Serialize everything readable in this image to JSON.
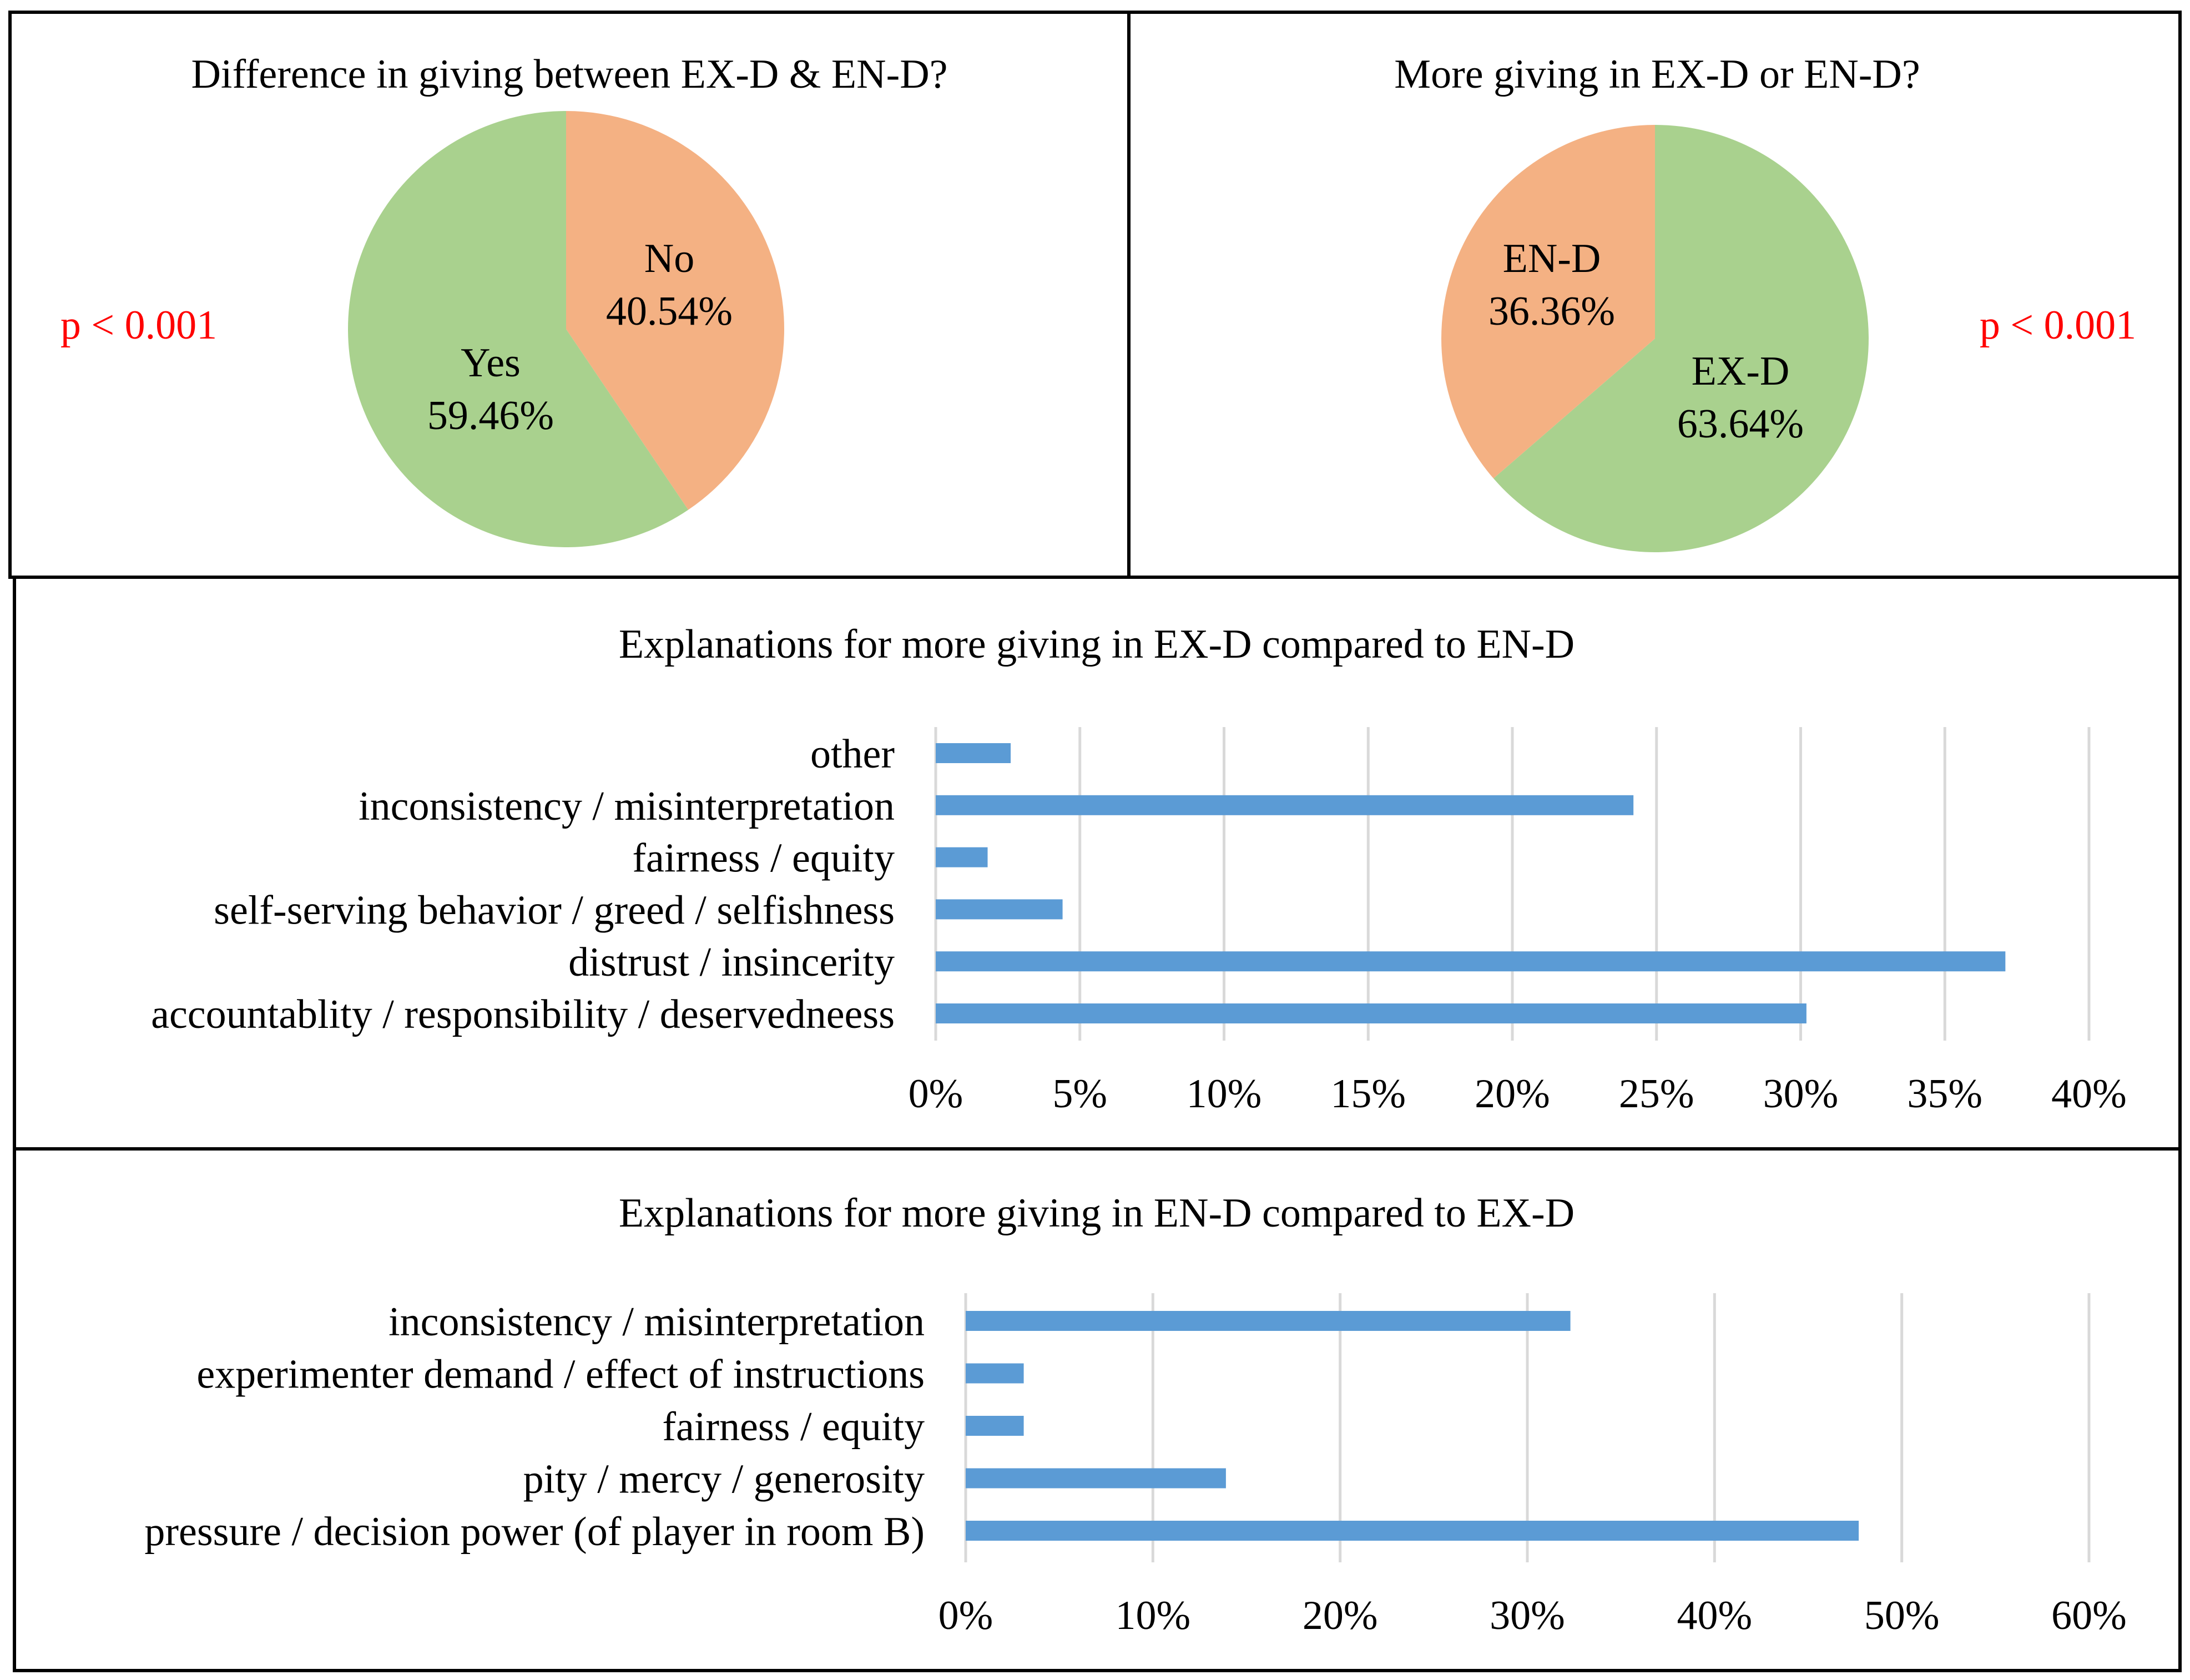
{
  "figure": {
    "colors": {
      "pie_green": "#A9D18E",
      "pie_orange": "#F4B183",
      "bar_blue": "#5B9BD5",
      "grid": "#D9D9D9",
      "pvalue_red": "#FF0000",
      "border": "#000000"
    }
  },
  "chart_data": [
    {
      "type": "pie",
      "title": "Difference in giving between EX-D & EN-D?",
      "annotation": "p < 0.001",
      "slices": [
        {
          "label": "No",
          "value": 40.54,
          "value_label": "40.54%",
          "color": "#F4B183"
        },
        {
          "label": "Yes",
          "value": 59.46,
          "value_label": "59.46%",
          "color": "#A9D18E"
        }
      ]
    },
    {
      "type": "pie",
      "title": "More giving in EX-D or EN-D?",
      "annotation": "p < 0.001",
      "slices": [
        {
          "label": "EX-D",
          "value": 63.64,
          "value_label": "63.64%",
          "color": "#A9D18E"
        },
        {
          "label": "EN-D",
          "value": 36.36,
          "value_label": "36.36%",
          "color": "#F4B183"
        }
      ]
    },
    {
      "type": "bar",
      "orientation": "horizontal",
      "title": "Explanations for more giving in EX-D compared to EN-D",
      "categories": [
        "other",
        "inconsistency / misinterpretation",
        "fairness / equity",
        "self-serving behavior / greed / selfishness",
        "distrust / insincerity",
        "accountablity / responsibility / deservedneess"
      ],
      "values": [
        2.6,
        24.2,
        1.8,
        4.4,
        37.1,
        30.2
      ],
      "xlim": [
        0,
        40
      ],
      "xticks": [
        "0%",
        "5%",
        "10%",
        "15%",
        "20%",
        "25%",
        "30%",
        "35%",
        "40%"
      ],
      "grid": true
    },
    {
      "type": "bar",
      "orientation": "horizontal",
      "title": "Explanations for more giving in EN-D compared to EX-D",
      "categories": [
        "inconsistency / misinterpretation",
        "experimenter demand / effect of instructions",
        "fairness / equity",
        "pity / mercy / generosity",
        "pressure / decision power (of player in room B)"
      ],
      "values": [
        32.3,
        3.1,
        3.1,
        13.9,
        47.7
      ],
      "xlim": [
        0,
        60
      ],
      "xticks": [
        "0%",
        "10%",
        "20%",
        "30%",
        "40%",
        "50%",
        "60%"
      ],
      "grid": true
    }
  ]
}
